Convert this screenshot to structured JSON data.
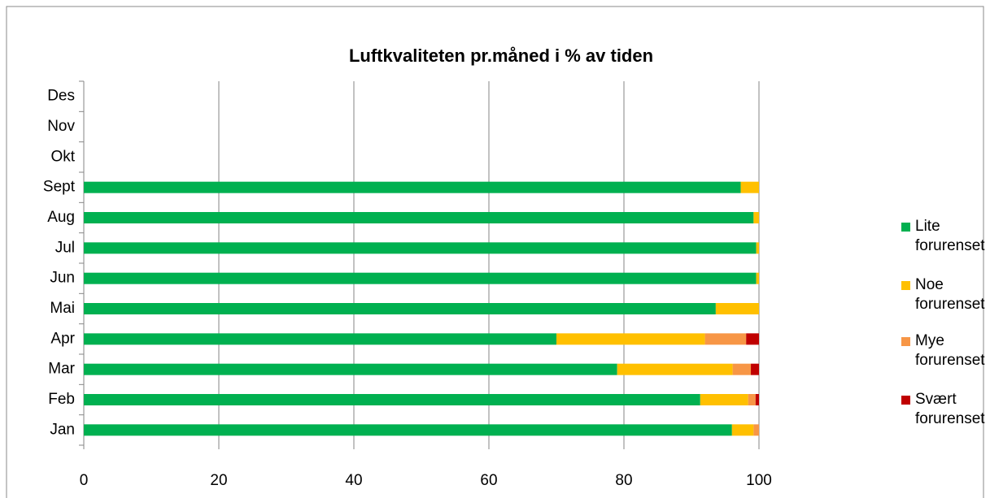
{
  "chart_data": {
    "type": "stacked_bar_horizontal",
    "title": "Luftkvaliteten pr.måned i % av tiden",
    "categories": [
      "Jan",
      "Feb",
      "Mar",
      "Apr",
      "Mai",
      "Jun",
      "Jul",
      "Aug",
      "Sept",
      "Okt",
      "Nov",
      "Des"
    ],
    "series": [
      {
        "name": "Lite forurenset",
        "color": "#00b050",
        "values": [
          96,
          91.3,
          79,
          70,
          93.6,
          99.6,
          99.6,
          99.2,
          97.3,
          null,
          null,
          null
        ]
      },
      {
        "name": "Noe forurenset",
        "color": "#ffc000",
        "values": [
          3.2,
          7.1,
          17.1,
          22,
          6.4,
          0.4,
          0.4,
          0.8,
          2.7,
          null,
          null,
          null
        ]
      },
      {
        "name": "Mye forurenset",
        "color": "#f79646",
        "values": [
          0.8,
          1.1,
          2.7,
          6.1,
          0,
          0,
          0,
          0,
          0,
          null,
          null,
          null
        ]
      },
      {
        "name": "Svært forurenset",
        "color": "#c00000",
        "values": [
          0,
          0.5,
          1.2,
          1.9,
          0,
          0,
          0,
          0,
          0,
          null,
          null,
          null
        ]
      }
    ],
    "xlim": [
      0,
      100
    ],
    "xticks": [
      0,
      20,
      40,
      60,
      80,
      100
    ],
    "grid": true,
    "legend": "right"
  }
}
